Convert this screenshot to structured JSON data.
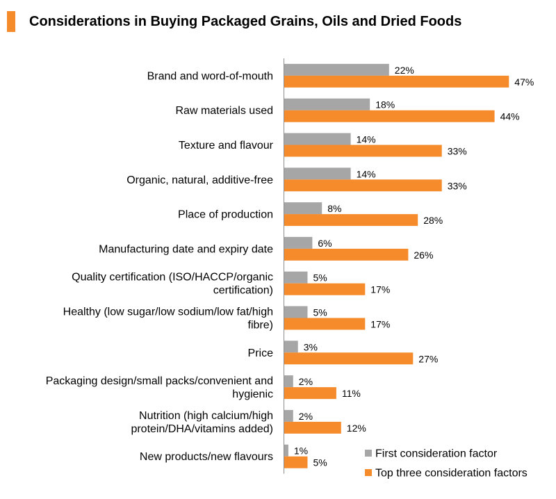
{
  "chart_data": {
    "type": "bar",
    "orientation": "horizontal",
    "title": "Considerations in Buying Packaged Grains, Oils and Dried Foods",
    "categories": [
      [
        "Brand and word-of-mouth"
      ],
      [
        "Raw materials used"
      ],
      [
        "Texture and flavour"
      ],
      [
        "Organic, natural, additive-free"
      ],
      [
        "Place of production"
      ],
      [
        "Manufacturing date and expiry date"
      ],
      [
        "Quality certification (ISO/HACCP/organic",
        "certification)"
      ],
      [
        "Healthy (low sugar/low sodium/low fat/high",
        "fibre)"
      ],
      [
        "Price"
      ],
      [
        "Packaging design/small packs/convenient and",
        "hygienic"
      ],
      [
        "Nutrition (high calcium/high",
        "protein/DHA/vitamins added)"
      ],
      [
        "New products/new flavours"
      ]
    ],
    "series": [
      {
        "name": "First consideration factor",
        "color": "#a6a6a6",
        "values": [
          22,
          18,
          14,
          14,
          8,
          6,
          5,
          5,
          3,
          2,
          2,
          1
        ]
      },
      {
        "name": "Top three consideration factors",
        "color": "#f68b2c",
        "values": [
          47,
          44,
          33,
          33,
          28,
          26,
          17,
          17,
          27,
          11,
          12,
          5
        ]
      }
    ],
    "value_suffix": "%",
    "xlim": [
      0,
      60
    ],
    "legend_position": "bottom-right",
    "grid": false
  },
  "header": {
    "accent_color": "#f68b2c"
  }
}
